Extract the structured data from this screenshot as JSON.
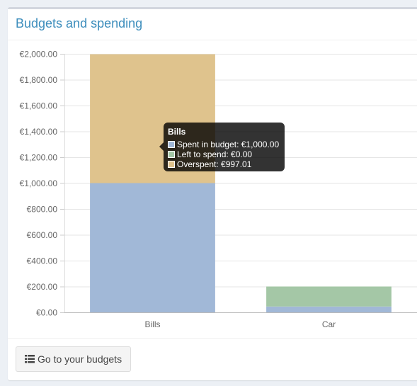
{
  "box": {
    "title": "Budgets and spending"
  },
  "footer": {
    "button_label": "Go to your budgets",
    "button_icon": "list-icon"
  },
  "colors": {
    "spent": "#a1b8d7",
    "left": "#a4c7a6",
    "overspent": "#dfc38d",
    "title": "#3c8dbc"
  },
  "chart_data": {
    "type": "bar",
    "stacked": true,
    "title": "",
    "xlabel": "",
    "ylabel": "",
    "ylim": [
      0,
      2000
    ],
    "y_ticks": [
      "€0.00",
      "€200.00",
      "€400.00",
      "€600.00",
      "€800.00",
      "€1,000.00",
      "€1,200.00",
      "€1,400.00",
      "€1,600.00",
      "€1,800.00",
      "€2,000.00"
    ],
    "grid": true,
    "categories": [
      "Bills",
      "Car"
    ],
    "series": [
      {
        "name": "Spent in budget",
        "values": [
          1000.0,
          45.0
        ]
      },
      {
        "name": "Left to spend",
        "values": [
          0.0,
          155.0
        ]
      },
      {
        "name": "Overspent",
        "values": [
          997.01,
          0.0
        ]
      }
    ]
  },
  "tooltip": {
    "title": "Bills",
    "rows": [
      "Spent in budget: €1,000.00",
      "Left to spend: €0.00",
      "Overspent: €997.01"
    ]
  }
}
